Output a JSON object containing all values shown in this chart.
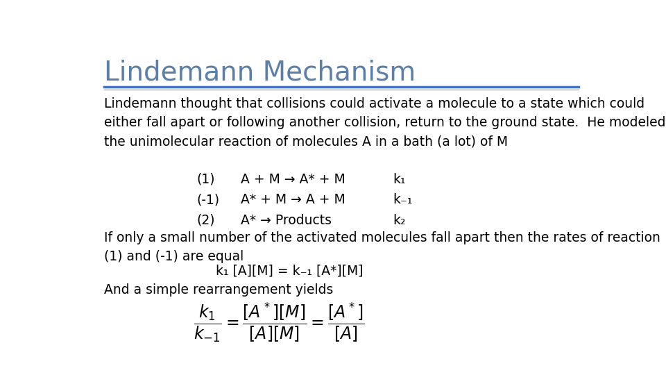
{
  "title": "Lindemann Mechanism",
  "title_color": "#5a7fa8",
  "title_fontsize": 28,
  "background_color": "#ffffff",
  "text_color": "#000000",
  "line1_color": "#4472c4",
  "line2_color": "#b0b0b0",
  "body_fontsize": 13.5,
  "para1": "Lindemann thought that collisions could activate a molecule to a state which could\neither fall apart or following another collision, return to the ground state.  He modeled\nthe unimolecular reaction of molecules A in a bath (a lot) of M",
  "reaction1_num": "(1)",
  "reaction1_eq": "A + M → A* + M",
  "reaction1_k": "k₁",
  "reaction2_num": "(-1)",
  "reaction2_eq": "A* + M → A + M",
  "reaction2_k": "k₋₁",
  "reaction3_num": "(2)",
  "reaction3_eq": "A* → Products",
  "reaction3_k": "k₂",
  "para2": "If only a small number of the activated molecules fall apart then the rates of reaction\n(1) and (-1) are equal",
  "equation_line": "k₁ [A][M] = k₋₁ [A*][M]",
  "para3": "And a simple rearrangement yields",
  "formula_latex": "\\frac{k_1}{k_{-1}} = \\frac{[A^*][M]}{[A][M]} = \\frac{[A^*]}{[A]}"
}
